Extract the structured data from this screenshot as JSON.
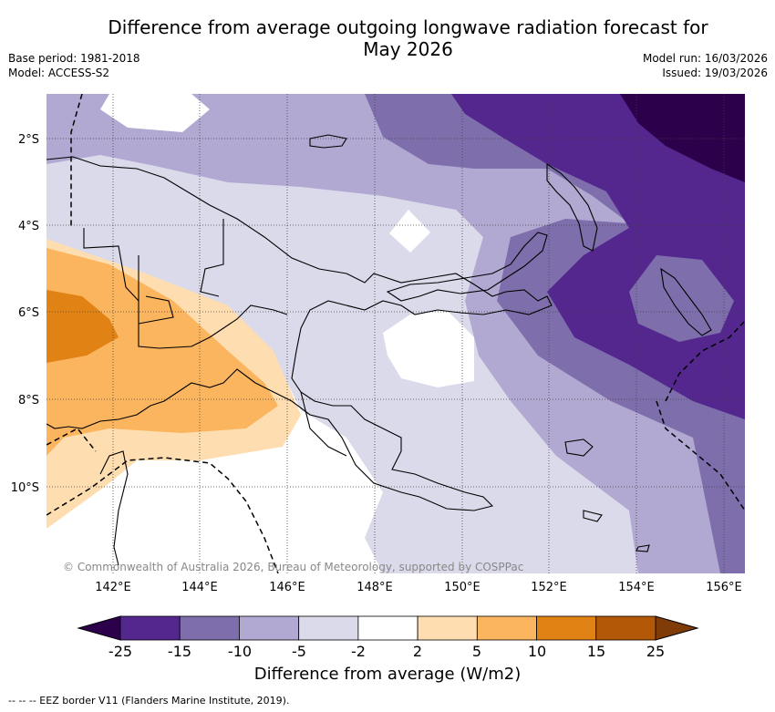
{
  "header": {
    "title_line1": "Difference from average outgoing longwave radiation forecast for",
    "title_line2": "May 2026",
    "base_period": "Base period: 1981-2018",
    "model": "Model: ACCESS-S2",
    "model_run": "Model run: 16/03/2026",
    "issued": "Issued: 19/03/2026"
  },
  "map": {
    "lat_labels": [
      "2°S",
      "4°S",
      "6°S",
      "8°S",
      "10°S"
    ],
    "lon_labels": [
      "142°E",
      "144°E",
      "146°E",
      "148°E",
      "150°E",
      "152°E",
      "154°E",
      "156°E"
    ],
    "copyright": "© Commonwealth of Australia 2026, Bureau of Meteorology, supported by COSPPac"
  },
  "colorbar": {
    "ticks": [
      "-25",
      "-15",
      "-10",
      "-5",
      "-2",
      "2",
      "5",
      "10",
      "15",
      "25"
    ],
    "colors": [
      "#54278f",
      "#7e6fac",
      "#b1a9d1",
      "#dadaea",
      "#ffffff",
      "#fedeb0",
      "#fbb55f",
      "#e08214",
      "#b35806"
    ],
    "under_color": "#2d004b",
    "over_color": "#7f3b08",
    "title": "Difference from average (W/m2)"
  },
  "footnote": "--  --  -- EEZ border V11 (Flanders Marine Institute, 2019)."
}
